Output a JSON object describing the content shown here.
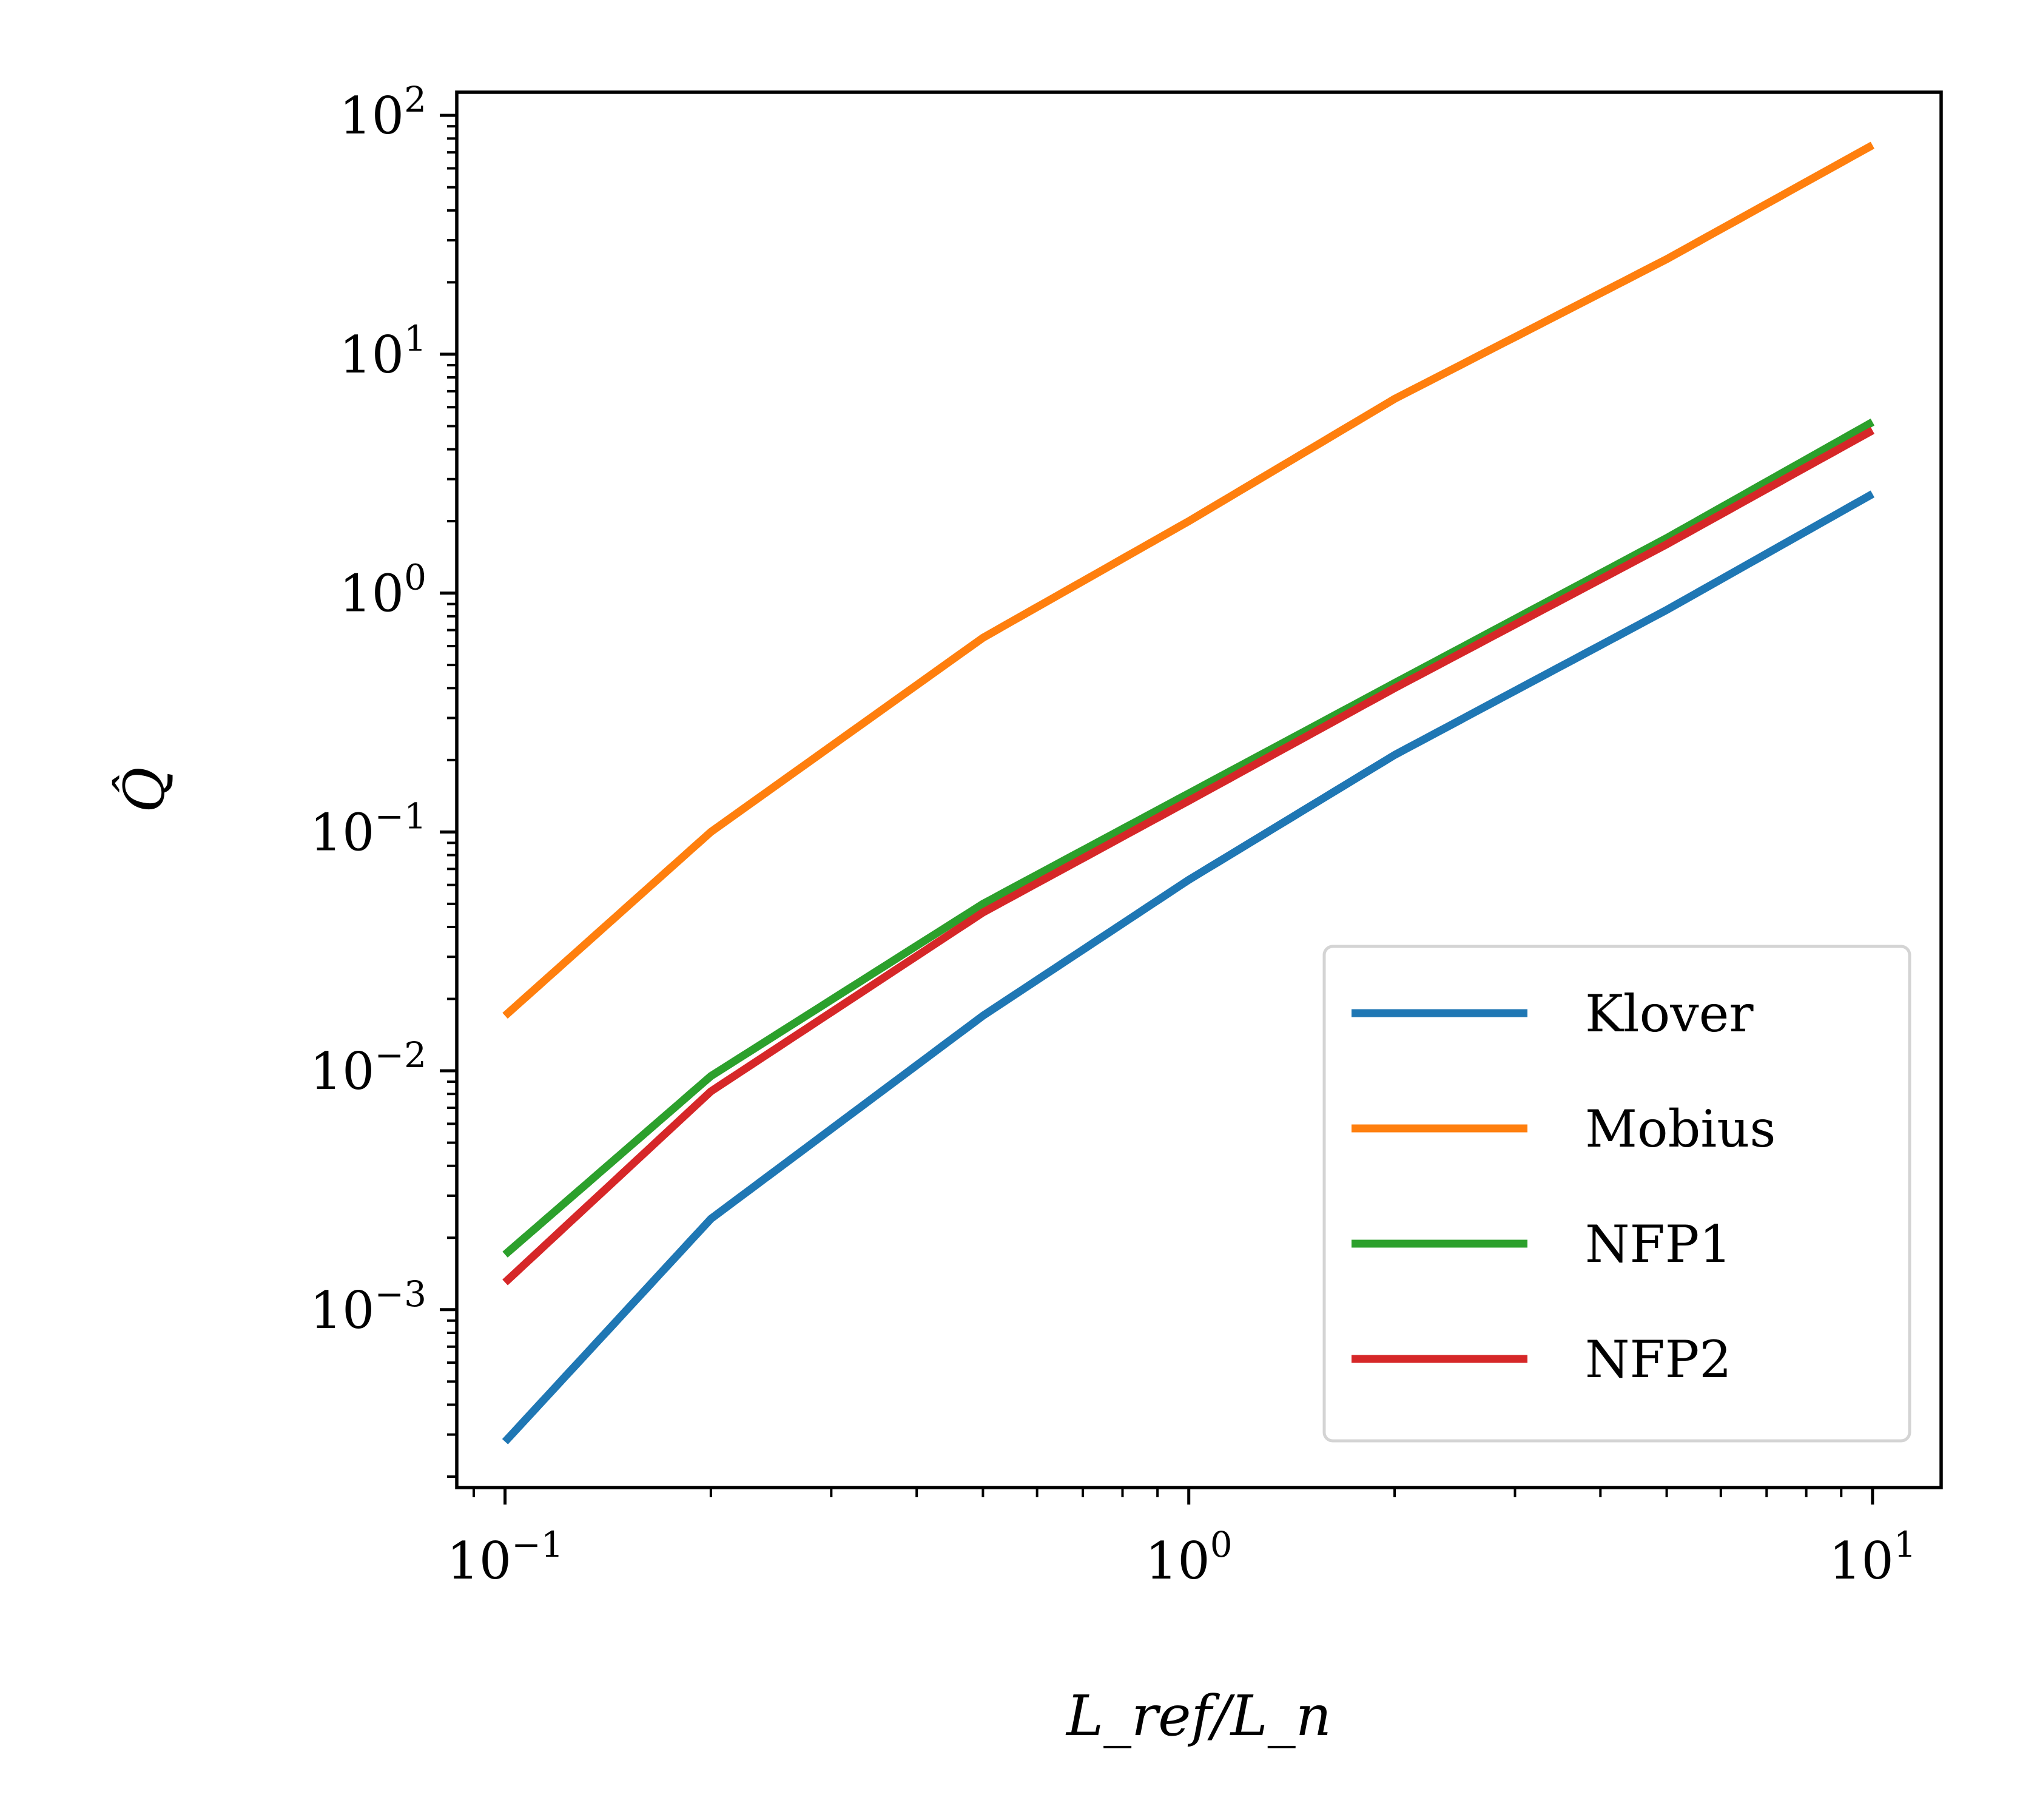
{
  "chart_data": {
    "type": "line",
    "title": "",
    "xlabel": "L_ref/L_n",
    "ylabel": "Q̂",
    "xscale": "log",
    "yscale": "log",
    "xlim": [
      0.085,
      12.6
    ],
    "ylim": [
      0.00018,
      125
    ],
    "xticks": [
      0.1,
      1,
      10
    ],
    "yticks": [
      0.001,
      0.01,
      0.1,
      1,
      10,
      100
    ],
    "xtick_labels": [
      {
        "base": "10",
        "exp": "−1"
      },
      {
        "base": "10",
        "exp": "0"
      },
      {
        "base": "10",
        "exp": "1"
      }
    ],
    "ytick_labels": [
      {
        "base": "10",
        "exp": "−3"
      },
      {
        "base": "10",
        "exp": "−2"
      },
      {
        "base": "10",
        "exp": "−1"
      },
      {
        "base": "10",
        "exp": "0"
      },
      {
        "base": "10",
        "exp": "1"
      },
      {
        "base": "10",
        "exp": "2"
      }
    ],
    "grid": false,
    "legend_position": "lower-right",
    "x": [
      0.1,
      0.2,
      0.5,
      1,
      2,
      5,
      10
    ],
    "series": [
      {
        "name": "Klover",
        "color": "#1f77b4",
        "values": [
          0.00028,
          0.0024,
          0.017,
          0.063,
          0.21,
          0.85,
          2.6
        ]
      },
      {
        "name": "Mobius",
        "color": "#ff7f0e",
        "values": [
          0.017,
          0.1,
          0.65,
          2.0,
          6.5,
          25,
          75
        ]
      },
      {
        "name": "NFP1",
        "color": "#2ca02c",
        "values": [
          0.0017,
          0.0095,
          0.05,
          0.145,
          0.42,
          1.7,
          5.2
        ]
      },
      {
        "name": "NFP2",
        "color": "#d62728",
        "values": [
          0.0013,
          0.0082,
          0.046,
          0.135,
          0.4,
          1.6,
          4.8
        ]
      }
    ]
  }
}
